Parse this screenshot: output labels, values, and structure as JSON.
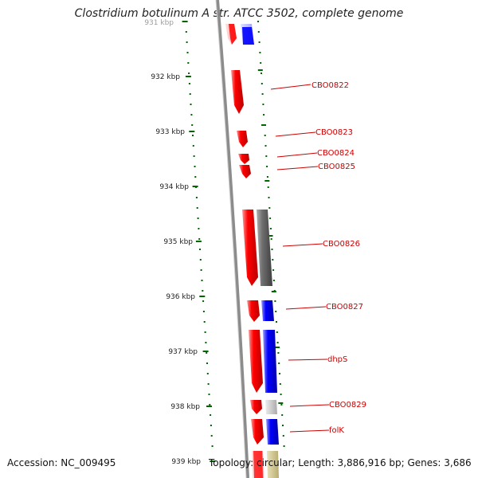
{
  "title": "Clostridium botulinum A str. ATCC 3502, complete genome",
  "accession": "Accession: NC_009495",
  "topology": "Topology: circular; Length: 3,886,916 bp; Genes: 3,686",
  "kbp_labels": [
    "931 kbp",
    "932 kbp",
    "933 kbp",
    "934 kbp",
    "935 kbp",
    "936 kbp",
    "937 kbp",
    "938 kbp",
    "939 kbp"
  ],
  "gene_labels": [
    "CBO0822",
    "CBO0823",
    "CBO0824",
    "CBO0825",
    "CBO0826",
    "CBO0827",
    "dhpS",
    "CBO0829",
    "folK"
  ],
  "colors": {
    "forward": "#ff0000",
    "cds_blue": "#0000ee",
    "gray": "#666666",
    "light_gray": "#bbbbbb",
    "tick_green": "#006600",
    "label_red": "#cc0000"
  }
}
